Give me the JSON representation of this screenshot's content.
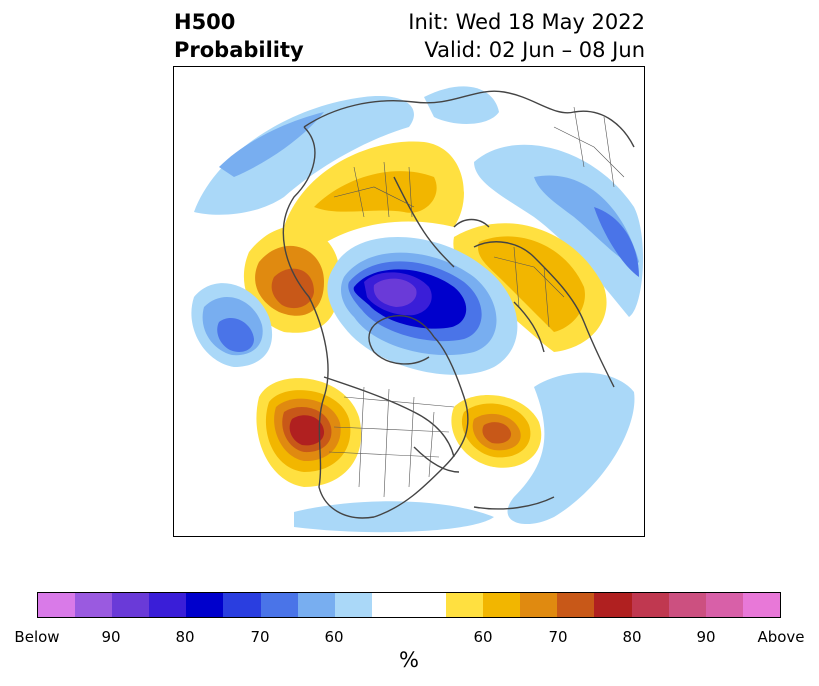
{
  "title": {
    "left_line1": "H500",
    "left_line2": "Probability",
    "right_line1": "Init: Wed 18 May 2022",
    "right_line2": "Valid: 02 Jun – 08 Jun"
  },
  "colorbar": {
    "unit": "%",
    "colors": [
      "#d97ae8",
      "#9a5ae0",
      "#6a3ad8",
      "#3a1ed8",
      "#0000cc",
      "#2a3ee0",
      "#4a74e8",
      "#78aef0",
      "#aad8f8",
      "#ffffff",
      "#ffe040",
      "#f2b600",
      "#e08a10",
      "#c85818",
      "#b02020",
      "#c03850",
      "#cc5080",
      "#d860a8",
      "#e878d8"
    ],
    "labels": [
      "Below",
      "90",
      "80",
      "70",
      "60",
      "60",
      "70",
      "80",
      "90",
      "Above"
    ]
  }
}
